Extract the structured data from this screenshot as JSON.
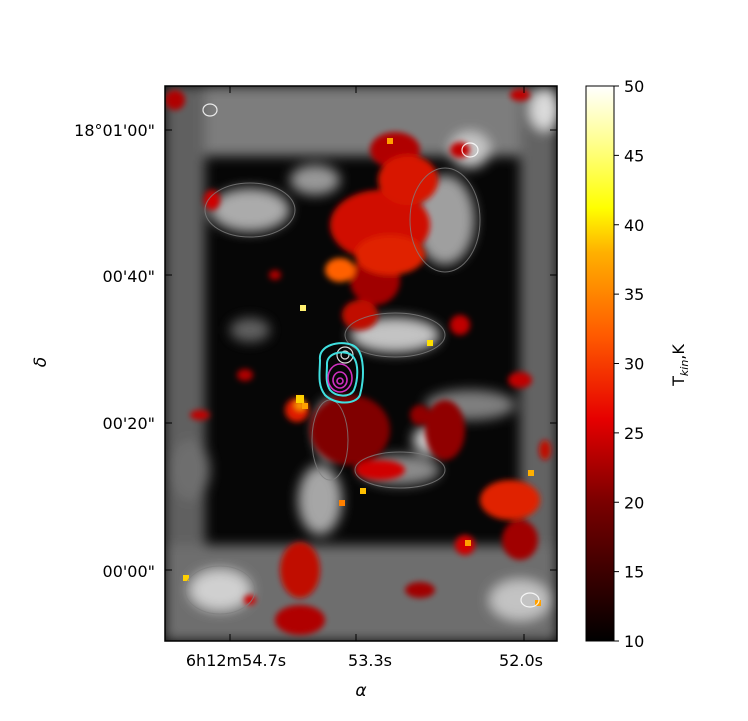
{
  "chart_data": {
    "type": "heatmap",
    "title": "",
    "xlabel": "α",
    "ylabel": "δ",
    "x_tick_labels": [
      "6h12m54.7s",
      "53.3s",
      "52.0s"
    ],
    "y_tick_labels": [
      "18°01'00\"",
      "00'40\"",
      "00'20\"",
      "00'00\""
    ],
    "colorbar": {
      "label_main": "T",
      "label_sub": "kin",
      "label_tail": ",K",
      "ticks": [
        10,
        15,
        20,
        25,
        30,
        35,
        40,
        45,
        50
      ],
      "range": [
        10,
        50
      ],
      "colormap": "hot"
    },
    "background_map": "grayscale intensity",
    "overlays": [
      {
        "kind": "contours",
        "color": "#40e0e0"
      },
      {
        "kind": "contours",
        "color": "#d030c0"
      },
      {
        "kind": "contours",
        "color": "#ffffff"
      }
    ]
  }
}
